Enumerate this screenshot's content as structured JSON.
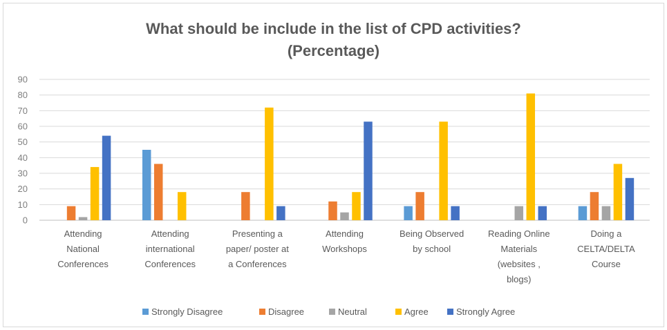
{
  "chart_data": {
    "type": "bar",
    "title": [
      "What should be include in the list of CPD activities?",
      "(Percentage)"
    ],
    "categories": [
      [
        "Attending",
        "National",
        "Conferences"
      ],
      [
        "Attending",
        "international",
        "Conferences"
      ],
      [
        "Presenting a",
        "paper/ poster at",
        "a Conferences"
      ],
      [
        "Attending",
        "Workshops"
      ],
      [
        "Being Observed",
        "by school"
      ],
      [
        "Reading Online",
        "Materials",
        "(websites ,",
        "blogs)"
      ],
      [
        "Doing a",
        "CELTA/DELTA",
        "Course"
      ]
    ],
    "series": [
      {
        "name": "Strongly Disagree",
        "color": "#5b9bd5",
        "values": [
          0,
          45,
          0,
          0,
          9,
          0,
          9
        ]
      },
      {
        "name": "Disagree",
        "color": "#ed7d31",
        "values": [
          9,
          36,
          18,
          12,
          18,
          0,
          18
        ]
      },
      {
        "name": "Neutral",
        "color": "#a5a5a5",
        "values": [
          2,
          0,
          0,
          5,
          0,
          9,
          9
        ]
      },
      {
        "name": "Agree",
        "color": "#ffc000",
        "values": [
          34,
          18,
          72,
          18,
          63,
          81,
          36
        ]
      },
      {
        "name": "Strongly Agree",
        "color": "#4472c4",
        "values": [
          54,
          0,
          9,
          63,
          9,
          9,
          27
        ]
      }
    ],
    "ylim": [
      0,
      90
    ],
    "yticks": [
      0,
      10,
      20,
      30,
      40,
      50,
      60,
      70,
      80,
      90
    ],
    "grid": true,
    "legend_position": "bottom"
  }
}
